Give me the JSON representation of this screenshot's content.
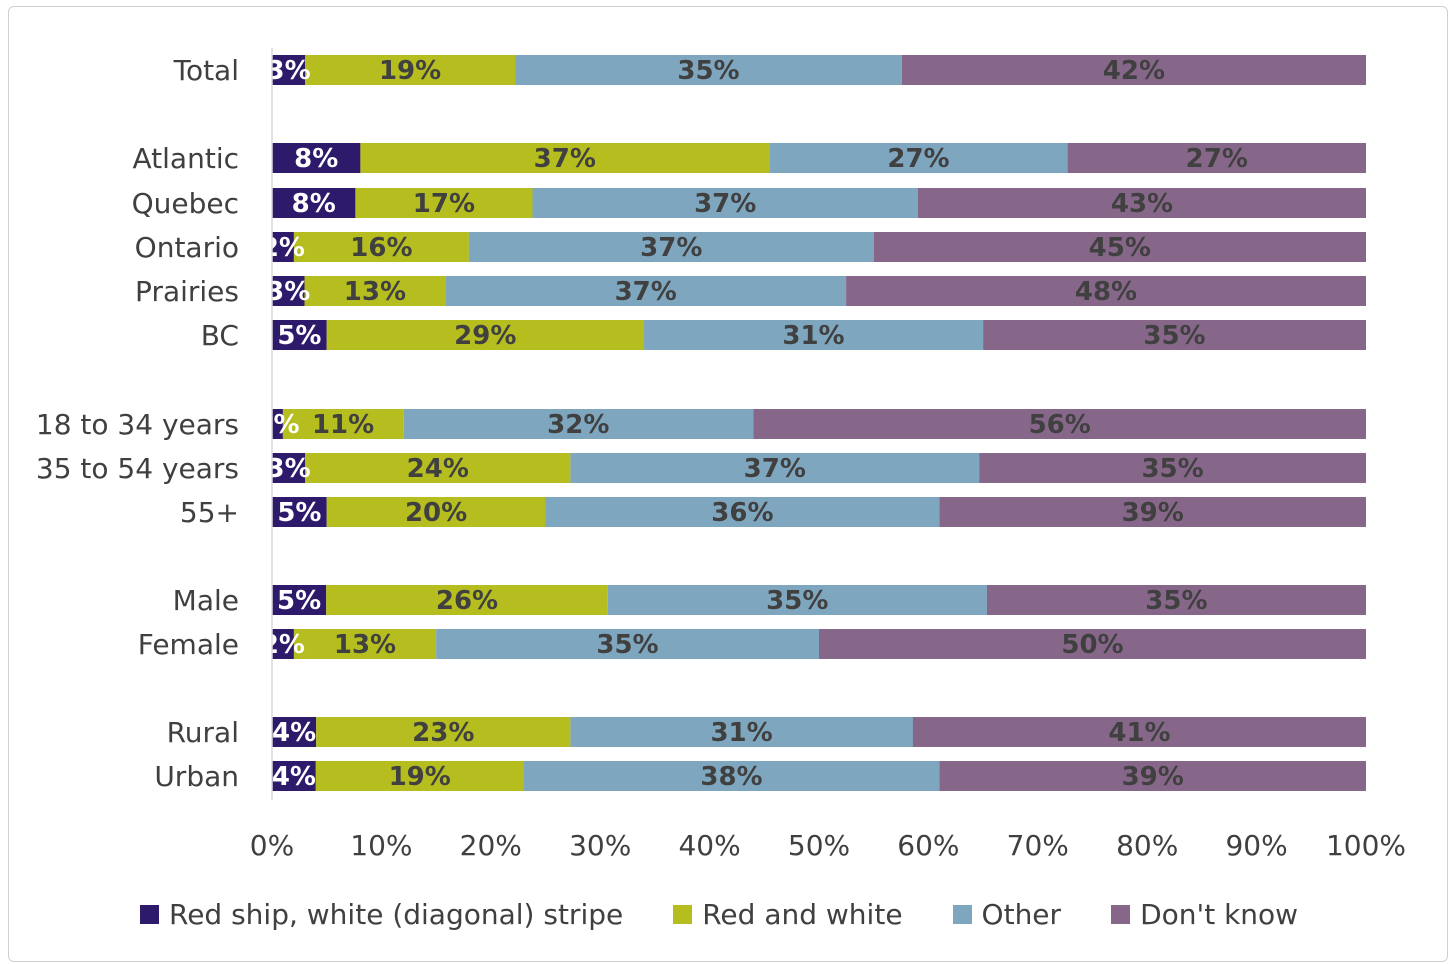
{
  "chart_data": {
    "type": "bar",
    "orientation": "horizontal",
    "stacked": "percent",
    "categories": [
      "Total",
      "Atlantic",
      "Quebec",
      "Ontario",
      "Prairies",
      "BC",
      "18 to 34 years",
      "35 to 54 years",
      "55+",
      "Male",
      "Female",
      "Rural",
      "Urban"
    ],
    "series": [
      {
        "name": "Red ship, white (diagonal) stripe",
        "color": "#2e1a6b",
        "label_color": "#ffffff",
        "values": [
          3,
          8,
          8,
          2,
          3,
          5,
          1,
          3,
          5,
          5,
          2,
          4,
          4
        ],
        "labels": [
          "3%",
          "8%",
          "8%",
          "2%",
          "3%",
          "5%",
          "1%",
          "3%",
          "5%",
          "5%",
          "2%",
          "4%",
          "4%"
        ]
      },
      {
        "name": "Red and white",
        "color": "#b5bd1f",
        "label_color": "#404040",
        "values": [
          19,
          37,
          17,
          16,
          13,
          29,
          11,
          24,
          20,
          26,
          13,
          23,
          19
        ],
        "labels": [
          "19%",
          "37%",
          "17%",
          "16%",
          "13%",
          "29%",
          "11%",
          "24%",
          "20%",
          "26%",
          "13%",
          "23%",
          "19%"
        ]
      },
      {
        "name": "Other",
        "color": "#7fa6bf",
        "label_color": "#404040",
        "values": [
          35,
          27,
          37,
          37,
          37,
          31,
          32,
          37,
          36,
          35,
          35,
          31,
          38
        ],
        "labels": [
          "35%",
          "27%",
          "37%",
          "37%",
          "37%",
          "31%",
          "32%",
          "37%",
          "36%",
          "35%",
          "35%",
          "31%",
          "38%"
        ]
      },
      {
        "name": "Don't know",
        "color": "#876789",
        "label_color": "#404040",
        "values": [
          42,
          27,
          43,
          45,
          48,
          35,
          56,
          35,
          39,
          35,
          50,
          41,
          39
        ],
        "labels": [
          "42%",
          "27%",
          "43%",
          "45%",
          "48%",
          "35%",
          "56%",
          "35%",
          "39%",
          "35%",
          "50%",
          "41%",
          "39%"
        ]
      }
    ],
    "xlim": [
      0,
      100
    ],
    "x_ticks": [
      "0%",
      "10%",
      "20%",
      "30%",
      "40%",
      "50%",
      "60%",
      "70%",
      "80%",
      "90%",
      "100%"
    ],
    "title": "",
    "xlabel": "",
    "ylabel": "",
    "grid": false,
    "legend_position": "bottom"
  }
}
